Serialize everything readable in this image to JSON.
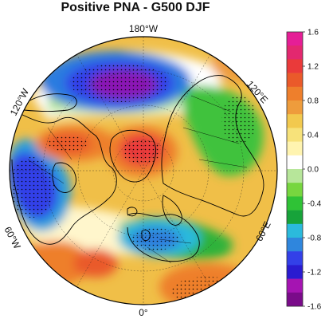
{
  "figure": {
    "title": "Positive PNA - G500 DJF"
  },
  "map": {
    "projection": "north polar stereographic",
    "field": "500 hPa geopotential height anomaly",
    "stippling": "shown",
    "longitude_labels": [
      {
        "id": "lon-180w",
        "text": "180°W"
      },
      {
        "id": "lon-120w",
        "text": "120°W"
      },
      {
        "id": "lon-120e",
        "text": "120°E"
      },
      {
        "id": "lon-60w",
        "text": "60°W"
      },
      {
        "id": "lon-60e",
        "text": "60°E"
      },
      {
        "id": "lon-0",
        "text": "0°"
      }
    ],
    "features": [
      {
        "name": "ridge-north-atlantic-greenland",
        "sign": "positive",
        "peak": 1.4
      },
      {
        "name": "trough-north-pacific",
        "sign": "negative",
        "peak": -1.6
      },
      {
        "name": "ridge-western-north-america",
        "sign": "positive",
        "peak": 1.0
      },
      {
        "name": "trough-eastern-north-america",
        "sign": "negative",
        "peak": -1.4
      },
      {
        "name": "trough-europe",
        "sign": "negative",
        "peak": -1.0
      },
      {
        "name": "trough-siberia",
        "sign": "negative",
        "peak": -0.6
      },
      {
        "name": "ridge-subtropics",
        "sign": "positive",
        "peak": 1.0
      }
    ]
  },
  "colorbar": {
    "min": -1.6,
    "max": 1.6,
    "step": 0.2,
    "tick_labels": [
      "1.6",
      "1.2",
      "0.8",
      "0.4",
      "0.0",
      "-0.4",
      "-0.8",
      "-1.2",
      "-1.6"
    ],
    "colors": [
      "#7a0b8a",
      "#a514b2",
      "#2a1bd0",
      "#3340e8",
      "#2f86dd",
      "#2bbadc",
      "#17a33a",
      "#2fc236",
      "#77d63f",
      "#b7e69a",
      "#ffffff",
      "#fff4b0",
      "#f7e27a",
      "#f2c94e",
      "#ee9c3c",
      "#ee7f2c",
      "#ea5a2a",
      "#ea3a3a",
      "#e3286f",
      "#e51e96"
    ]
  }
}
